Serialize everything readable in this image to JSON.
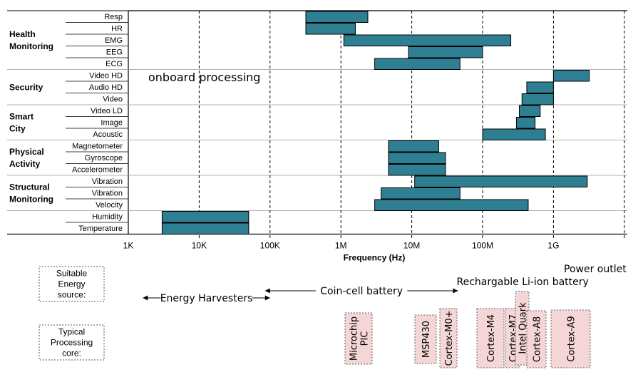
{
  "chart_data": {
    "type": "bar",
    "orientation": "horizontal-range",
    "x_scale": "log",
    "xlim": [
      1000,
      10000000000
    ],
    "xlabel": "Frequency (Hz)",
    "x_ticks": [
      {
        "v": 1000,
        "label": "1K"
      },
      {
        "v": 10000,
        "label": "10K"
      },
      {
        "v": 100000,
        "label": "100K"
      },
      {
        "v": 1000000,
        "label": "1M"
      },
      {
        "v": 10000000,
        "label": "10M"
      },
      {
        "v": 100000000,
        "label": "100M"
      },
      {
        "v": 1000000000,
        "label": "1G"
      }
    ],
    "grid": "dashed vertical",
    "annotation": "onboard processing",
    "groups": [
      {
        "name": "Health Monitoring",
        "rows": [
          {
            "label": "Resp",
            "min": 320000,
            "max": 2400000
          },
          {
            "label": "HR",
            "min": 320000,
            "max": 1600000
          },
          {
            "label": "EMG",
            "min": 1100000,
            "max": 250000000
          },
          {
            "label": "EEG",
            "min": 9000000,
            "max": 100000000
          },
          {
            "label": "ECG",
            "min": 3000000,
            "max": 48000000
          }
        ]
      },
      {
        "name": "Security",
        "rows": [
          {
            "label": "Video HD",
            "min": 1000000000,
            "max": 3200000000
          },
          {
            "label": "Audio HD",
            "min": 420000000,
            "max": 1000000000
          },
          {
            "label": "Video",
            "min": 360000000,
            "max": 1000000000
          }
        ]
      },
      {
        "name": "Smart City",
        "rows": [
          {
            "label": "Video LD",
            "min": 330000000,
            "max": 650000000
          },
          {
            "label": "Image",
            "min": 300000000,
            "max": 550000000
          },
          {
            "label": "Acoustic",
            "min": 100000000,
            "max": 770000000
          }
        ]
      },
      {
        "name": "Physical Activity",
        "rows": [
          {
            "label": "Magnetometer",
            "min": 4700000,
            "max": 24000000
          },
          {
            "label": "Gyroscope",
            "min": 4700000,
            "max": 30000000
          },
          {
            "label": "Accelerometer",
            "min": 4700000,
            "max": 30000000
          }
        ]
      },
      {
        "name": "Structural Monitoring",
        "rows": [
          {
            "label": "Vibration",
            "min": 11000000,
            "max": 3000000000
          },
          {
            "label": "Vibration",
            "min": 3700000,
            "max": 48000000
          },
          {
            "label": "Velocity",
            "min": 3000000,
            "max": 440000000
          }
        ]
      },
      {
        "name": "",
        "rows": [
          {
            "label": "Humidity",
            "min": 3000,
            "max": 50000
          },
          {
            "label": "Temperature",
            "min": 3000,
            "max": 50000
          }
        ]
      }
    ]
  },
  "colors": {
    "bar": "#2f7f93",
    "bar_edge": "#000000",
    "core_fill": "#f4d6d6"
  },
  "energy": {
    "row_label": "Suitable Energy source:",
    "ranges": [
      {
        "label": "Energy Harvesters",
        "from": 1600,
        "to": 100000
      },
      {
        "label": "Coin-cell battery",
        "from": 85000,
        "to": 45000000
      },
      {
        "label": "Rechargable Li-ion battery",
        "from": 45000000,
        "to": 3000000000
      },
      {
        "label": "Power outlet",
        "from": 1500000000,
        "to": 10000000000
      }
    ]
  },
  "cores": {
    "row_label": "Typical Processing core:",
    "items": [
      {
        "label": "Microchip PIC"
      },
      {
        "label": "MSP430"
      },
      {
        "label": "Cortex-M0+"
      },
      {
        "label": "Cortex-M4"
      },
      {
        "label": "Cortex-M7"
      },
      {
        "label": "Intel Quark"
      },
      {
        "label": "Cortex-A8"
      },
      {
        "label": "Cortex-A9"
      }
    ]
  }
}
